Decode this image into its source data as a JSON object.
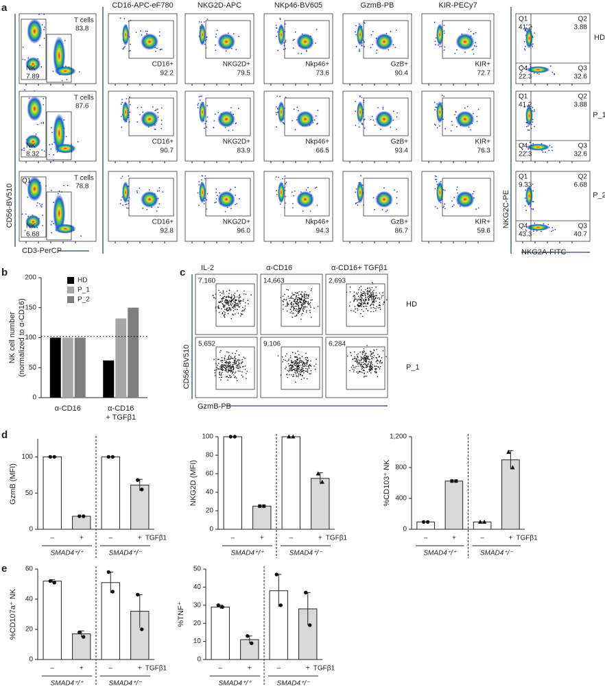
{
  "panel_labels": [
    "a",
    "b",
    "c",
    "d",
    "e"
  ],
  "panel_a": {
    "x_axis": "CD3-PerCP",
    "y_axis": "CD56-BV510",
    "lineage": [
      {
        "t_label": "T cells",
        "t_value": "83.8",
        "nk_label": "NK",
        "nk_value": "7.89"
      },
      {
        "t_label": "T cells",
        "t_value": "87.6",
        "nk_label": "NK",
        "nk_value": "8.32"
      },
      {
        "t_label": "T cells",
        "t_value": "78.8",
        "nk_label": "NK",
        "nk_value": "6.68",
        "q_label": "Q1"
      }
    ],
    "markers": [
      {
        "name": "CD16-APC-eF780",
        "gate": "CD16+",
        "values": [
          "92.2",
          "90.7",
          "92.8"
        ]
      },
      {
        "name": "NKG2D-APC",
        "gate": "NKG2D+",
        "values": [
          "79.5",
          "83.9",
          "96.0"
        ]
      },
      {
        "name": "NKp46-BV605",
        "gate": "Nkp46+",
        "values": [
          "73.6",
          "66.5",
          "94.3"
        ]
      },
      {
        "name": "GzmB-PB",
        "gate": "GzB+",
        "values": [
          "90.4",
          "93.4",
          "86.7"
        ]
      },
      {
        "name": "KIR-PECy7",
        "gate": "KIR+",
        "values": [
          "72.7",
          "76.3",
          "59.6"
        ]
      }
    ],
    "quadrant_x_axis": "NKG2A-FITC",
    "quadrant_y_axis": "NKG2C-PE",
    "quadrant_names": [
      "Q1",
      "Q2",
      "Q4",
      "Q3"
    ],
    "samples": [
      {
        "name": "HD",
        "quadrants": [
          "41.2",
          "3.88",
          "22.3",
          "32.6"
        ]
      },
      {
        "name": "P_1",
        "quadrants": [
          "41.2",
          "3.88",
          "22.3",
          "32.6"
        ]
      },
      {
        "name": "P_2",
        "quadrants": [
          "9.33",
          "6.68",
          "43.3",
          "40.7"
        ]
      }
    ]
  },
  "panel_c": {
    "columns": [
      "IL-2",
      "α-CD16",
      "α-CD16+ TGFβ1"
    ],
    "rows": [
      {
        "name": "HD",
        "counts": [
          "7,160",
          "14,663",
          "2,693"
        ]
      },
      {
        "name": "P_1",
        "counts": [
          "5,652",
          "9,106",
          "6,284"
        ]
      }
    ],
    "x_axis": "GzmB-PB",
    "y_axis": "CD56-BV510"
  },
  "chart_data": [
    {
      "type": "grouped_bar",
      "ylabel": "NK cell number",
      "ylabel_note": "(normalized to α-CD16)",
      "categories": [
        [
          "α-CD16"
        ],
        [
          "α-CD16",
          "+ TGFβ1"
        ]
      ],
      "series": [
        {
          "name": "HD",
          "color": "#000000",
          "values": [
            100,
            62
          ]
        },
        {
          "name": "P_1",
          "color": "#a6a6a6",
          "values": [
            100,
            132
          ]
        },
        {
          "name": "P_2",
          "color": "#7f7f7f",
          "values": [
            100,
            150
          ]
        }
      ],
      "ylim": [
        0,
        200
      ],
      "yticks": [
        0,
        50,
        100,
        150,
        200
      ],
      "reference_line": 102,
      "legend": "upper left"
    },
    {
      "type": "bar",
      "ylabel": "GzmB (MFI)",
      "categories": [
        "–",
        "+",
        "–",
        "+"
      ],
      "treatment": "TGFβ1",
      "groups": [
        "SMAD4⁺/⁺",
        "SMAD4⁺/⁻"
      ],
      "values": [
        100,
        18,
        100,
        61
      ],
      "errors": [
        0,
        0,
        0,
        8
      ],
      "points": [
        [
          100,
          100
        ],
        [
          18,
          18
        ],
        [
          100,
          100
        ],
        [
          68,
          55
        ]
      ],
      "point_markers": [
        "circle",
        "circle",
        "circle",
        "circle"
      ],
      "colors": [
        "#ffffff",
        "#d9d9d9",
        "#ffffff",
        "#d9d9d9"
      ],
      "ylim": [
        0,
        125
      ],
      "yticks": [
        0,
        50,
        100
      ]
    },
    {
      "type": "bar",
      "ylabel": "NKG2D (MFI)",
      "categories": [
        "–",
        "+",
        "–",
        "+"
      ],
      "treatment": "TGFβ1",
      "groups": [
        "SMAD4⁺/⁺",
        "SMAD4⁺/⁻"
      ],
      "values": [
        100,
        25,
        100,
        55
      ],
      "errors": [
        0,
        0,
        0,
        6
      ],
      "points": [
        [
          100,
          100
        ],
        [
          25,
          25
        ],
        [
          100,
          100
        ],
        [
          60,
          51
        ]
      ],
      "point_markers": [
        "circle",
        "square",
        "triangle",
        "triangle"
      ],
      "colors": [
        "#ffffff",
        "#d9d9d9",
        "#ffffff",
        "#d9d9d9"
      ],
      "ylim": [
        0,
        100
      ],
      "yticks": [
        0,
        20,
        40,
        60,
        80,
        100
      ]
    },
    {
      "type": "bar",
      "ylabel": "%CD103⁺ NK",
      "categories": [
        "–",
        "+",
        "–",
        "+"
      ],
      "treatment": "TGFβ1",
      "groups": [
        "SMAD4⁺/⁺",
        "SMAD4⁺/⁻"
      ],
      "values": [
        95,
        625,
        95,
        900
      ],
      "errors": [
        0,
        0,
        0,
        120
      ],
      "points": [
        [
          95,
          95
        ],
        [
          625,
          625
        ],
        [
          95,
          95
        ],
        [
          1000,
          800
        ]
      ],
      "point_markers": [
        "circle",
        "square",
        "triangle",
        "triangle"
      ],
      "colors": [
        "#ffffff",
        "#d9d9d9",
        "#ffffff",
        "#d9d9d9"
      ],
      "ylim": [
        0,
        1200
      ],
      "yticks": [
        0,
        400,
        800,
        {
          "value": 1200,
          "label": "1,200"
        }
      ]
    },
    {
      "type": "bar",
      "ylabel": "%CD107a⁺ NK",
      "categories": [
        "–",
        "+",
        "–",
        "+"
      ],
      "treatment": "TGFβ1",
      "groups": [
        "SMAD4⁺/⁺",
        "SMAD4⁺/⁻"
      ],
      "values": [
        52,
        17,
        51,
        32
      ],
      "errors": [
        1,
        2,
        7,
        11
      ],
      "points": [
        [
          52,
          51
        ],
        [
          18,
          15
        ],
        [
          58,
          45
        ],
        [
          43,
          20
        ]
      ],
      "point_markers": [
        "circle",
        "circle",
        "circle",
        "circle"
      ],
      "colors": [
        "#ffffff",
        "#d9d9d9",
        "#ffffff",
        "#d9d9d9"
      ],
      "ylim": [
        0,
        60
      ],
      "yticks": [
        0,
        20,
        40,
        60
      ]
    },
    {
      "type": "bar",
      "ylabel": "%TNF⁺",
      "categories": [
        "–",
        "+",
        "–",
        "+"
      ],
      "treatment": "TGFβ1",
      "groups": [
        "SMAD4⁺/⁺",
        "SMAD4⁺/⁻"
      ],
      "values": [
        29,
        11,
        38,
        28
      ],
      "errors": [
        1,
        2,
        9,
        9
      ],
      "points": [
        [
          30,
          29
        ],
        [
          13,
          9
        ],
        [
          47,
          30
        ],
        [
          37,
          19
        ]
      ],
      "point_markers": [
        "circle",
        "circle",
        "circle",
        "circle"
      ],
      "colors": [
        "#ffffff",
        "#d9d9d9",
        "#ffffff",
        "#d9d9d9"
      ],
      "ylim": [
        0,
        50
      ],
      "yticks": [
        0,
        10,
        20,
        30,
        40,
        50
      ]
    }
  ]
}
